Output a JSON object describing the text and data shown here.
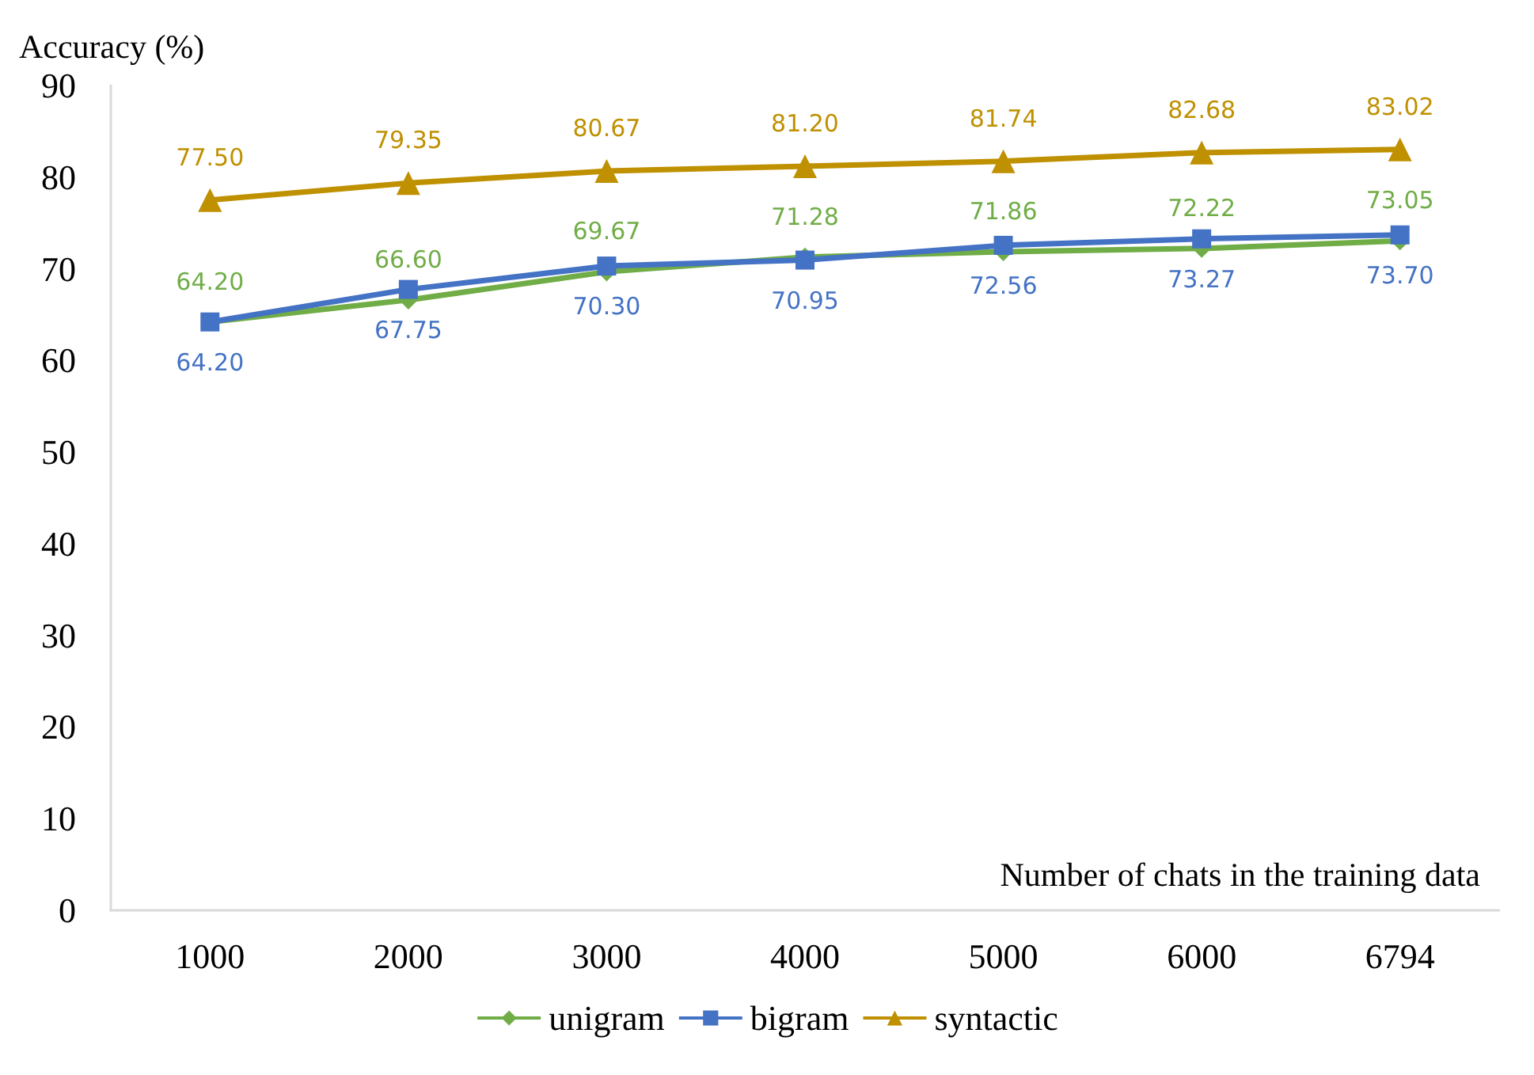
{
  "chart_data": {
    "type": "line",
    "xlabel": "Number of chats in the training data",
    "ylabel": "Accuracy (%)",
    "categories": [
      "1000",
      "2000",
      "3000",
      "4000",
      "5000",
      "6000",
      "6794"
    ],
    "ylim": [
      0,
      90
    ],
    "yticks": [
      0,
      10,
      20,
      30,
      40,
      50,
      60,
      70,
      80,
      90
    ],
    "grid": false,
    "legend": "bottom",
    "series": [
      {
        "name": "unigram",
        "color": "#70ad47",
        "marker": "diamond",
        "values": [
          64.2,
          66.6,
          69.67,
          71.28,
          71.86,
          72.22,
          73.05
        ],
        "value_labels": [
          "64.20",
          "66.60",
          "69.67",
          "71.28",
          "71.86",
          "72.22",
          "73.05"
        ]
      },
      {
        "name": "bigram",
        "color": "#4472c4",
        "marker": "square",
        "values": [
          64.2,
          67.75,
          70.3,
          70.95,
          72.56,
          73.27,
          73.7
        ],
        "value_labels": [
          "64.20",
          "67.75",
          "70.30",
          "70.95",
          "72.56",
          "73.27",
          "73.70"
        ]
      },
      {
        "name": "syntactic",
        "color": "#bf9000",
        "marker": "triangle",
        "values": [
          77.5,
          79.35,
          80.67,
          81.2,
          81.74,
          82.68,
          83.02
        ],
        "value_labels": [
          "77.50",
          "79.35",
          "80.67",
          "81.20",
          "81.74",
          "82.68",
          "83.02"
        ]
      }
    ]
  }
}
